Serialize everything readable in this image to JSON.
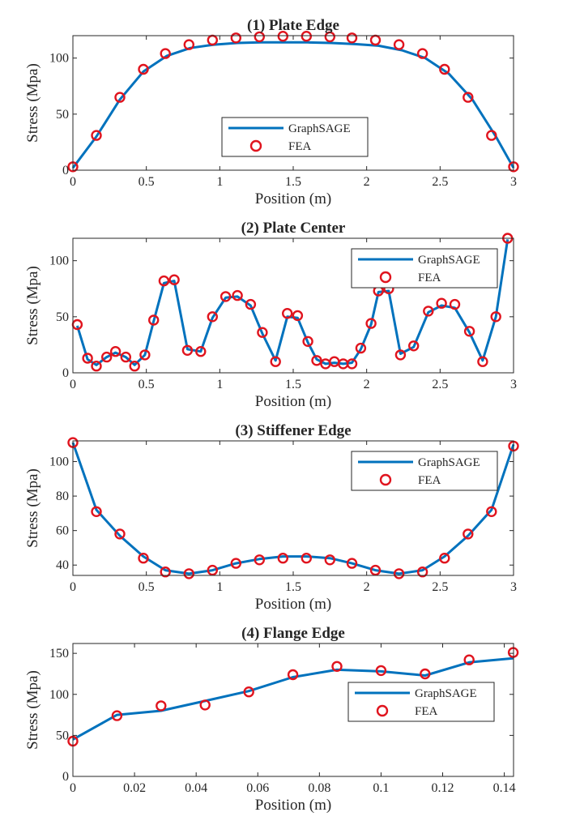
{
  "colors": {
    "line": "#0072BD",
    "marker": "#E0141E",
    "axis": "#262626",
    "background": "#ffffff"
  },
  "chart_data": [
    {
      "type": "line",
      "title": "(1) Plate Edge",
      "xlabel": "Position (m)",
      "ylabel": "Stress (Mpa)",
      "xlim": [
        0,
        3
      ],
      "ylim": [
        0,
        120
      ],
      "xticks": [
        0,
        0.5,
        1,
        1.5,
        2,
        2.5,
        3
      ],
      "xticklabels": [
        "0",
        "0.5",
        "1",
        "1.5",
        "2",
        "2.5",
        "3"
      ],
      "yticks": [
        0,
        50,
        100
      ],
      "yticklabels": [
        "0",
        "50",
        "100"
      ],
      "legend": {
        "position": "center-bottom",
        "entries": [
          "GraphSAGE",
          "FEA"
        ]
      },
      "series": [
        {
          "name": "GraphSAGE",
          "style": "line",
          "x": [
            0,
            0.16,
            0.32,
            0.48,
            0.64,
            0.8,
            0.96,
            1.12,
            1.28,
            1.44,
            1.6,
            1.76,
            1.92,
            2.08,
            2.24,
            2.4,
            2.56,
            2.72,
            2.88,
            3.0
          ],
          "y": [
            2,
            30,
            63,
            88,
            102,
            109,
            112,
            113.5,
            114,
            114,
            114,
            113.5,
            112.5,
            111,
            107,
            100,
            86,
            63,
            30,
            2
          ]
        },
        {
          "name": "FEA",
          "style": "marker",
          "x": [
            0.0,
            0.16,
            0.32,
            0.48,
            0.63,
            0.79,
            0.95,
            1.11,
            1.27,
            1.43,
            1.59,
            1.75,
            1.9,
            2.06,
            2.22,
            2.38,
            2.53,
            2.69,
            2.85,
            3.0
          ],
          "y": [
            3,
            31,
            65,
            90,
            104,
            112,
            116,
            118,
            119,
            119.5,
            119.5,
            119,
            118,
            116,
            112,
            104,
            90,
            65,
            31,
            3
          ]
        }
      ]
    },
    {
      "type": "line",
      "title": "(2) Plate Center",
      "xlabel": "Position (m)",
      "ylabel": "Stress (Mpa)",
      "xlim": [
        0,
        3
      ],
      "ylim": [
        0,
        120
      ],
      "xticks": [
        0,
        0.5,
        1,
        1.5,
        2,
        2.5,
        3
      ],
      "xticklabels": [
        "0",
        "0.5",
        "1",
        "1.5",
        "2",
        "2.5",
        "3"
      ],
      "yticks": [
        0,
        50,
        100
      ],
      "yticklabels": [
        "0",
        "50",
        "100"
      ],
      "legend": {
        "position": "top-right",
        "entries": [
          "GraphSAGE",
          "FEA"
        ]
      },
      "series": [
        {
          "name": "GraphSAGE",
          "style": "line",
          "x": [
            0.03,
            0.1,
            0.16,
            0.23,
            0.29,
            0.36,
            0.42,
            0.49,
            0.55,
            0.62,
            0.69,
            0.78,
            0.87,
            0.95,
            1.04,
            1.12,
            1.21,
            1.29,
            1.38,
            1.46,
            1.53,
            1.6,
            1.66,
            1.72,
            1.78,
            1.84,
            1.9,
            1.96,
            2.03,
            2.08,
            2.15,
            2.23,
            2.32,
            2.42,
            2.51,
            2.6,
            2.7,
            2.79,
            2.88,
            2.96
          ],
          "y": [
            42,
            12,
            7,
            14,
            18,
            14,
            7,
            16,
            46,
            80,
            82,
            21,
            19,
            49,
            67,
            68,
            60,
            35,
            11,
            50,
            49,
            27,
            12,
            8,
            9,
            8,
            9,
            21,
            43,
            72,
            73,
            17,
            23,
            54,
            60,
            58,
            36,
            11,
            50,
            119
          ]
        },
        {
          "name": "FEA",
          "style": "marker",
          "x": [
            0.03,
            0.1,
            0.16,
            0.23,
            0.29,
            0.36,
            0.42,
            0.49,
            0.55,
            0.62,
            0.69,
            0.78,
            0.87,
            0.95,
            1.04,
            1.12,
            1.21,
            1.29,
            1.38,
            1.46,
            1.53,
            1.6,
            1.66,
            1.72,
            1.78,
            1.84,
            1.9,
            1.96,
            2.03,
            2.08,
            2.15,
            2.23,
            2.32,
            2.42,
            2.51,
            2.6,
            2.7,
            2.79,
            2.88,
            2.96
          ],
          "y": [
            43,
            13,
            6,
            14,
            19,
            14,
            6,
            16,
            47,
            82,
            83,
            20,
            19,
            50,
            68,
            69,
            61,
            36,
            10,
            53,
            51,
            28,
            11,
            8,
            10,
            8,
            8,
            22,
            44,
            73,
            75,
            16,
            24,
            55,
            62,
            61,
            37,
            10,
            50,
            120
          ]
        }
      ]
    },
    {
      "type": "line",
      "title": "(3) Stiffener Edge",
      "xlabel": "Position (m)",
      "ylabel": "Stress (Mpa)",
      "xlim": [
        0,
        3
      ],
      "ylim": [
        34,
        112
      ],
      "xticks": [
        0,
        0.5,
        1,
        1.5,
        2,
        2.5,
        3
      ],
      "xticklabels": [
        "0",
        "0.5",
        "1",
        "1.5",
        "2",
        "2.5",
        "3"
      ],
      "yticks": [
        40,
        60,
        80,
        100
      ],
      "yticklabels": [
        "40",
        "60",
        "80",
        "100"
      ],
      "legend": {
        "position": "top-right",
        "entries": [
          "GraphSAGE",
          "FEA"
        ]
      },
      "series": [
        {
          "name": "GraphSAGE",
          "style": "line",
          "x": [
            0,
            0.16,
            0.32,
            0.48,
            0.63,
            0.79,
            0.95,
            1.11,
            1.27,
            1.43,
            1.59,
            1.75,
            1.9,
            2.06,
            2.22,
            2.38,
            2.53,
            2.69,
            2.85,
            3.0
          ],
          "y": [
            111,
            72,
            57,
            45,
            37,
            35,
            37,
            41,
            43.5,
            45,
            45,
            44,
            41,
            37,
            35,
            37,
            45,
            57,
            72,
            110
          ]
        },
        {
          "name": "FEA",
          "style": "marker",
          "x": [
            0,
            0.16,
            0.32,
            0.48,
            0.63,
            0.79,
            0.95,
            1.11,
            1.27,
            1.43,
            1.59,
            1.75,
            1.9,
            2.06,
            2.22,
            2.38,
            2.53,
            2.69,
            2.85,
            3.0
          ],
          "y": [
            111,
            71,
            58,
            44,
            36,
            35,
            37,
            41,
            43,
            44,
            44,
            43,
            41,
            37,
            35,
            36,
            44,
            58,
            71,
            109
          ]
        }
      ]
    },
    {
      "type": "line",
      "title": "(4) Flange Edge",
      "xlabel": "Position (m)",
      "ylabel": "Stress (Mpa)",
      "xlim": [
        0,
        0.143
      ],
      "ylim": [
        0,
        162
      ],
      "xticks": [
        0,
        0.02,
        0.04,
        0.06,
        0.08,
        0.1,
        0.12,
        0.14
      ],
      "xticklabels": [
        "0",
        "0.02",
        "0.04",
        "0.06",
        "0.08",
        "0.1",
        "0.12",
        "0.14"
      ],
      "yticks": [
        0,
        50,
        100,
        150
      ],
      "yticklabels": [
        "0",
        "50",
        "100",
        "150"
      ],
      "legend": {
        "position": "right-middle",
        "entries": [
          "GraphSAGE",
          "FEA"
        ]
      },
      "series": [
        {
          "name": "GraphSAGE",
          "style": "line",
          "x": [
            0,
            0.0143,
            0.0286,
            0.0429,
            0.0571,
            0.0714,
            0.0857,
            0.1,
            0.1143,
            0.1286,
            0.1429
          ],
          "y": [
            45,
            75,
            80,
            92,
            104,
            121,
            130,
            128,
            123,
            139,
            144
          ]
        },
        {
          "name": "FEA",
          "style": "marker",
          "x": [
            0,
            0.0143,
            0.0286,
            0.0429,
            0.0571,
            0.0714,
            0.0857,
            0.1,
            0.1143,
            0.1286,
            0.1429
          ],
          "y": [
            43,
            74,
            86,
            87,
            103,
            124,
            134,
            129,
            125,
            142,
            151
          ]
        }
      ]
    }
  ]
}
